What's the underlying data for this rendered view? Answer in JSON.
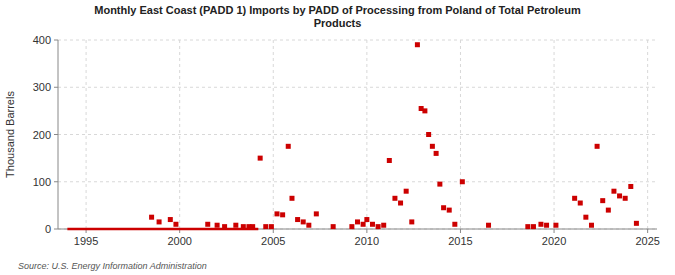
{
  "chart_data": {
    "type": "scatter",
    "title": "Monthly East Coast (PADD 1) Imports by PADD of Processing from Poland of Total Petroleum\nProducts",
    "ylabel": "Thousand Barrels",
    "source": "Source: U.S. Energy Information Administration",
    "xlim": [
      1993.5,
      2025.5
    ],
    "ylim": [
      0,
      400
    ],
    "xticks": [
      1995,
      2000,
      2005,
      2010,
      2015,
      2020,
      2025
    ],
    "yticks": [
      0,
      100,
      200,
      300,
      400
    ],
    "grid": true,
    "series": [
      {
        "type": "line",
        "color": "#cc0000",
        "x": [
          1994.0,
          2004.2
        ],
        "values": [
          0,
          0
        ]
      },
      {
        "type": "scatter",
        "color": "#cc0000",
        "marker": "square",
        "x": [
          1998.5,
          1998.9,
          1999.5,
          1999.8,
          2001.5,
          2002.0,
          2002.4,
          2003.0,
          2003.4,
          2003.7,
          2003.9,
          2004.3,
          2004.6,
          2004.9,
          2005.2,
          2005.5,
          2005.8,
          2006.0,
          2006.3,
          2006.6,
          2006.9,
          2007.3,
          2008.2,
          2009.2,
          2009.5,
          2009.8,
          2010.0,
          2010.3,
          2010.6,
          2010.9,
          2011.2,
          2011.5,
          2011.8,
          2012.1,
          2012.4,
          2012.7,
          2012.9,
          2013.1,
          2013.3,
          2013.5,
          2013.7,
          2013.9,
          2014.1,
          2014.4,
          2014.7,
          2015.1,
          2016.5,
          2018.6,
          2018.9,
          2019.3,
          2019.6,
          2020.1,
          2021.1,
          2021.4,
          2021.7,
          2022.0,
          2022.3,
          2022.6,
          2022.9,
          2023.2,
          2023.5,
          2023.8,
          2024.1,
          2024.4
        ],
        "values": [
          25,
          15,
          20,
          10,
          10,
          8,
          5,
          8,
          5,
          5,
          5,
          150,
          5,
          5,
          32,
          30,
          175,
          65,
          20,
          15,
          8,
          32,
          5,
          5,
          15,
          10,
          20,
          10,
          5,
          8,
          145,
          65,
          55,
          80,
          15,
          390,
          255,
          250,
          200,
          175,
          160,
          95,
          45,
          40,
          10,
          100,
          8,
          5,
          5,
          10,
          8,
          8,
          65,
          55,
          25,
          8,
          175,
          60,
          40,
          80,
          70,
          65,
          90,
          12
        ]
      }
    ]
  }
}
